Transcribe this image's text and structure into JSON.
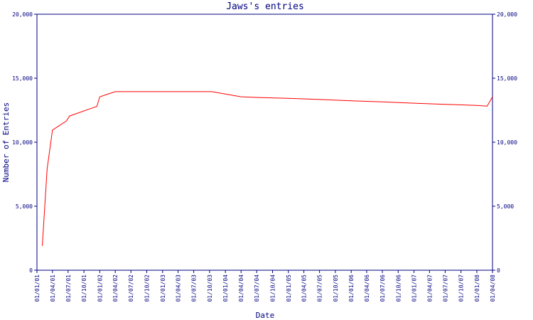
{
  "chart_data": {
    "type": "line",
    "title": "Jaws's entries",
    "xlabel": "Date",
    "ylabel": "Number of Entries",
    "ylim": [
      0,
      20000
    ],
    "y_ticks": [
      "0",
      "5,000",
      "10,000",
      "15,000",
      "20,000"
    ],
    "x_ticks": [
      "01/01/01",
      "01/04/01",
      "01/07/01",
      "01/10/01",
      "01/01/02",
      "01/04/02",
      "01/07/02",
      "01/10/02",
      "01/01/03",
      "01/04/03",
      "01/07/03",
      "01/10/03",
      "01/01/04",
      "01/04/04",
      "01/07/04",
      "01/10/04",
      "01/01/05",
      "01/04/05",
      "01/07/05",
      "01/10/05",
      "01/01/06",
      "01/04/06",
      "01/07/06",
      "01/10/06",
      "01/01/07",
      "01/04/07",
      "01/07/07",
      "01/10/07",
      "01/01/08",
      "01/04/08"
    ],
    "grid": false,
    "colors": {
      "line": "#ff0000",
      "axes": "#000080",
      "title": "#000080"
    },
    "series": [
      {
        "x": [
          "2001-02-01",
          "2001-03-01",
          "2001-04-01",
          "2001-06-20",
          "2001-07-10",
          "2001-12-15",
          "2002-01-01",
          "2002-04-01",
          "2003-10-15",
          "2004-04-01",
          "2004-07-01",
          "2005-01-01",
          "2005-07-01",
          "2006-01-01",
          "2006-07-01",
          "2007-01-01",
          "2007-07-01",
          "2008-01-01",
          "2008-03-01",
          "2008-04-01"
        ],
        "y": [
          1900,
          7900,
          10950,
          11650,
          12050,
          12800,
          13550,
          13950,
          13950,
          13550,
          13500,
          13430,
          13340,
          13240,
          13150,
          13050,
          12960,
          12870,
          12820,
          13550
        ]
      }
    ]
  }
}
